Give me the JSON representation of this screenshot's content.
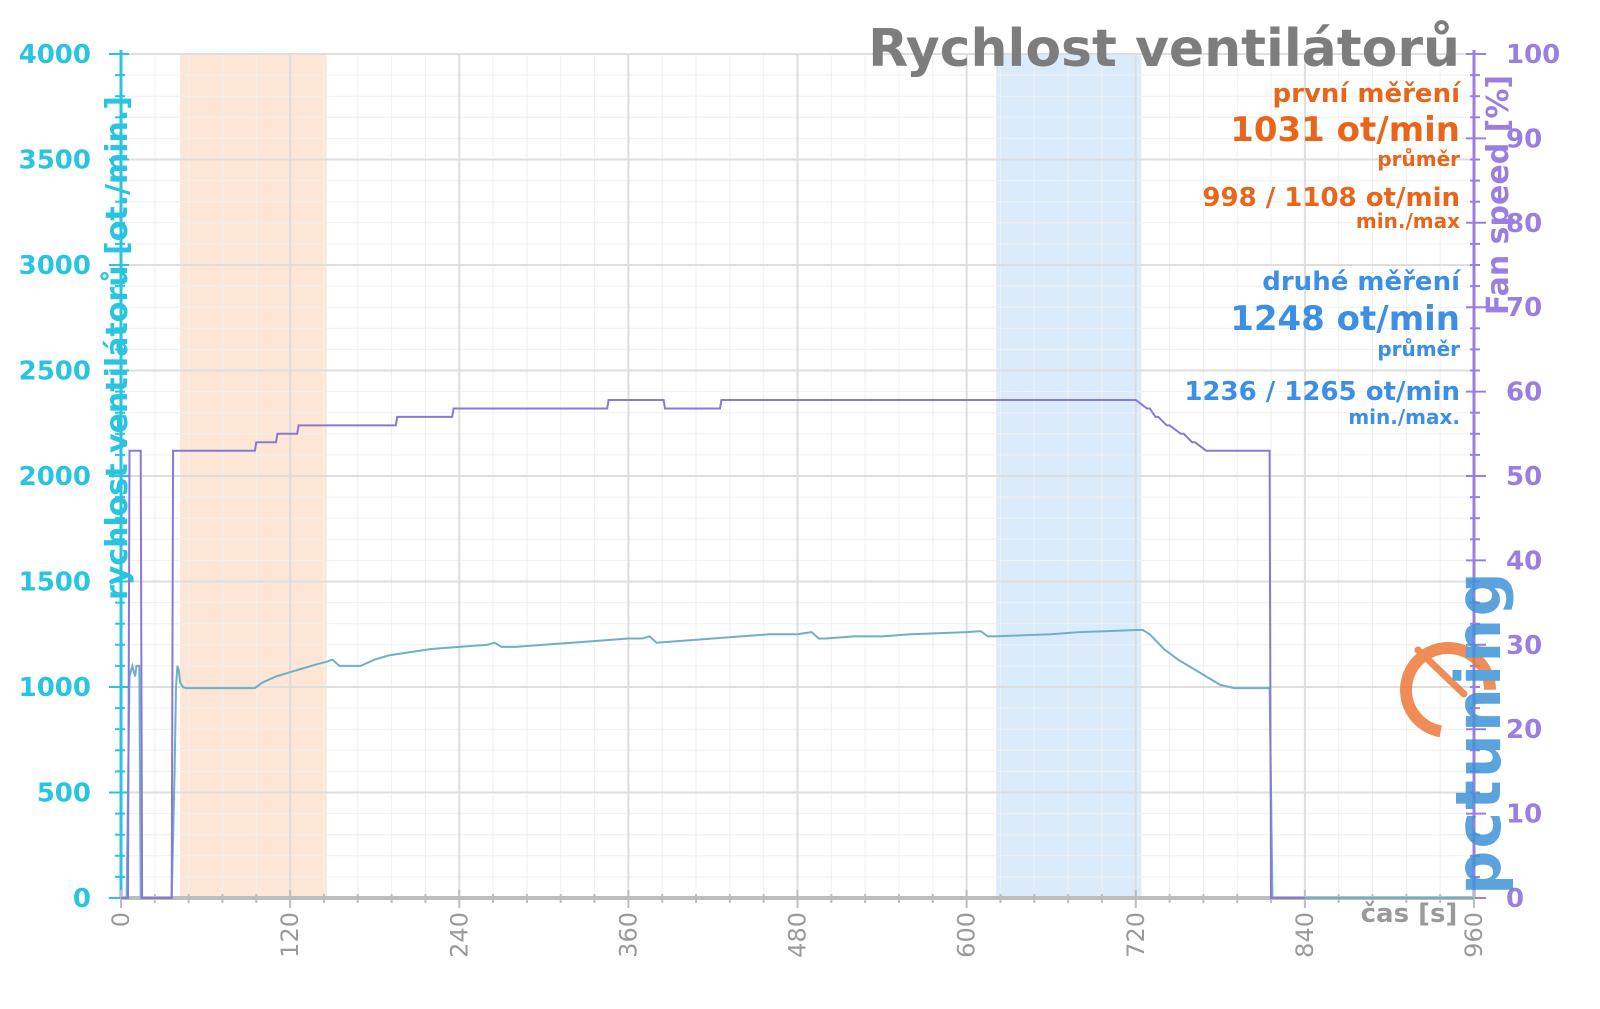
{
  "chart_data": {
    "type": "line",
    "title": "Rychlost ventilátorů",
    "xlabel": "čas [s]",
    "ylabel_left": "rychlost ventilátorů [ot./min.]",
    "ylabel_right": "Fan speed [%]",
    "xlim": [
      0,
      960
    ],
    "ylim_left": [
      0,
      4000
    ],
    "ylim_right": [
      0,
      100
    ],
    "x_ticks": [
      "0",
      "120",
      "240",
      "360",
      "480",
      "600",
      "720",
      "840",
      "960"
    ],
    "y_ticks_left": [
      "0",
      "500",
      "1000",
      "1500",
      "2000",
      "2500",
      "3000",
      "3500",
      "4000"
    ],
    "y_ticks_right": [
      "0",
      "10",
      "20",
      "30",
      "40",
      "50",
      "60",
      "70",
      "80",
      "90",
      "100"
    ],
    "grid": true,
    "highlight_ranges": [
      {
        "from": 42,
        "to": 146,
        "color": "#fbd2b2"
      },
      {
        "from": 621,
        "to": 724,
        "color": "#bcdcfa"
      }
    ],
    "series": [
      {
        "axis": "left",
        "color": "#6fb0c6",
        "x": [
          0,
          4,
          6,
          8,
          10,
          11,
          13,
          14,
          36,
          38,
          39,
          40,
          41,
          42,
          44,
          46,
          48,
          50,
          60,
          80,
          95,
          100,
          110,
          120,
          130,
          140,
          146,
          150,
          155,
          160,
          170,
          180,
          190,
          200,
          220,
          240,
          260,
          265,
          270,
          280,
          300,
          320,
          340,
          360,
          370,
          375,
          380,
          400,
          420,
          440,
          460,
          480,
          490,
          495,
          500,
          520,
          540,
          560,
          580,
          600,
          610,
          615,
          620,
          640,
          660,
          680,
          700,
          720,
          725,
          730,
          740,
          750,
          760,
          770,
          780,
          790,
          800,
          810,
          815,
          817,
          825,
          960
        ],
        "y": [
          0,
          0,
          1050,
          1100,
          1050,
          1100,
          1100,
          0,
          0,
          600,
          1000,
          1100,
          1080,
          1020,
          1000,
          995,
          995,
          995,
          995,
          995,
          995,
          1020,
          1050,
          1070,
          1090,
          1110,
          1120,
          1130,
          1100,
          1100,
          1100,
          1130,
          1150,
          1160,
          1180,
          1190,
          1200,
          1210,
          1190,
          1190,
          1200,
          1210,
          1220,
          1230,
          1230,
          1240,
          1210,
          1220,
          1230,
          1240,
          1250,
          1250,
          1260,
          1230,
          1230,
          1240,
          1240,
          1250,
          1255,
          1260,
          1265,
          1240,
          1240,
          1245,
          1250,
          1260,
          1265,
          1270,
          1270,
          1250,
          1180,
          1130,
          1090,
          1050,
          1010,
          995,
          995,
          995,
          995,
          0,
          0,
          0
        ]
      },
      {
        "axis": "right",
        "color": "#8a78d8",
        "x": [
          0,
          5,
          6,
          8,
          14,
          15,
          36,
          37,
          95,
          96,
          110,
          111,
          125,
          126,
          145,
          146,
          195,
          196,
          235,
          236,
          345,
          346,
          385,
          386,
          425,
          426,
          600,
          720,
          728,
          730,
          734,
          736,
          742,
          744,
          752,
          754,
          760,
          762,
          770,
          772,
          815,
          816,
          840
        ],
        "y": [
          0,
          0,
          53,
          53,
          53,
          0,
          0,
          53,
          53,
          54,
          54,
          55,
          55,
          56,
          56,
          56,
          56,
          57,
          57,
          58,
          58,
          59,
          59,
          58,
          58,
          59,
          59,
          59,
          58,
          58,
          57,
          57,
          56,
          56,
          55,
          55,
          54,
          54,
          53,
          53,
          53,
          0,
          0
        ]
      }
    ],
    "annotations": {
      "first_title": "první měření",
      "first_avg": "1031 ot/min",
      "first_avg_label": "průměr",
      "first_minmax": "998 / 1108 ot/min",
      "first_minmax_label": "min./max",
      "second_title": "druhé měření",
      "second_avg": "1248 ot/min",
      "second_avg_label": "průměr",
      "second_minmax": "1236 / 1265 ot/min",
      "second_minmax_label": "min./max."
    },
    "watermark": "pctuning"
  }
}
